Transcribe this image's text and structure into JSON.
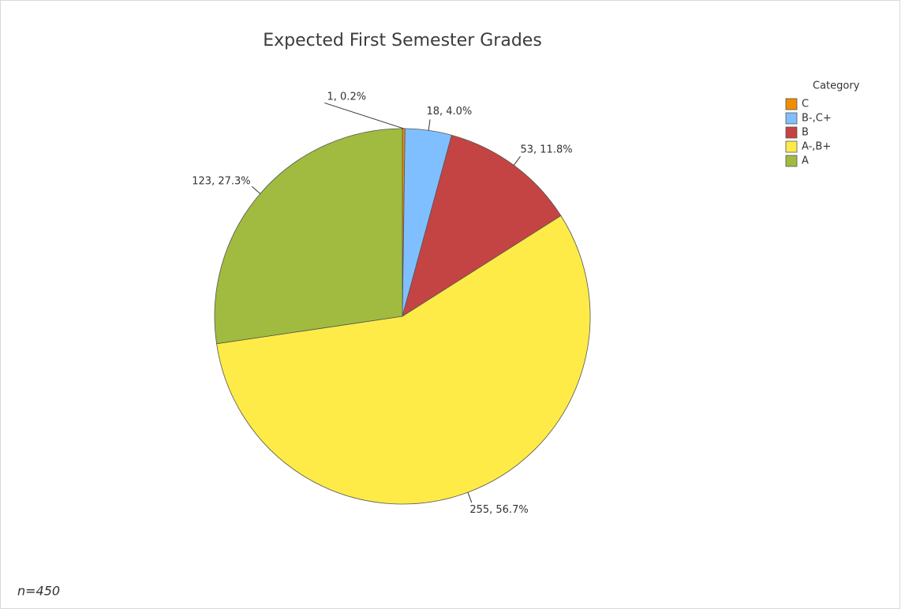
{
  "chart_data": {
    "type": "pie",
    "title": "Expected First Semester Grades",
    "categories": [
      "C",
      "B-,C+",
      "B",
      "A-,B+",
      "A"
    ],
    "values": [
      1,
      18,
      53,
      255,
      123
    ],
    "value_labels": [
      "1, 0.2%",
      "18, 4.0%",
      "53, 11.8%",
      "255, 56.7%",
      "123, 27.3%"
    ],
    "colors": [
      "#f28c00",
      "#80bfff",
      "#c44444",
      "#ffeb47",
      "#a0bb3f"
    ],
    "legend_title": "Category",
    "legend": "right",
    "footnote": "n=450"
  }
}
